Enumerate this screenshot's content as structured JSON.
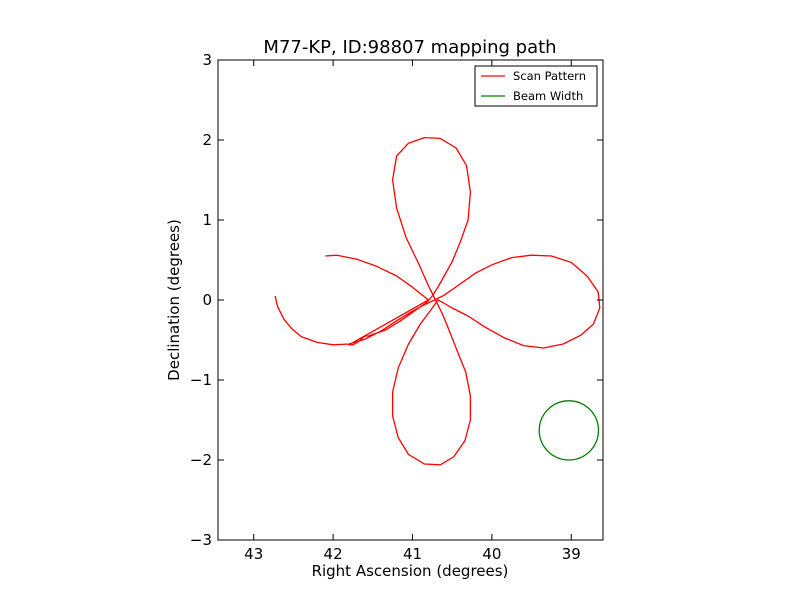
{
  "chart_data": {
    "type": "line",
    "title": "M77-KP, ID:98807 mapping path",
    "xlabel": "Right Ascension (degrees)",
    "ylabel": "Declination (degrees)",
    "xlim": [
      43.45,
      38.6
    ],
    "ylim": [
      -3,
      3
    ],
    "x_ticks": [
      43,
      42,
      41,
      40,
      39
    ],
    "y_ticks": [
      -3,
      -2,
      -1,
      0,
      1,
      2,
      3
    ],
    "x_tick_labels": [
      "43",
      "42",
      "41",
      "40",
      "39"
    ],
    "y_tick_labels": [
      "−3",
      "−2",
      "−1",
      "0",
      "1",
      "2",
      "3"
    ],
    "grid": false,
    "legend_position": "top-right",
    "legend": [
      "Scan Pattern",
      "Beam Width"
    ],
    "series": [
      {
        "name": "Scan Pattern",
        "color": "#ff0000",
        "kind": "line",
        "points": [
          [
            42.73,
            0.05
          ],
          [
            42.7,
            -0.08
          ],
          [
            42.62,
            -0.24
          ],
          [
            42.52,
            -0.36
          ],
          [
            42.4,
            -0.46
          ],
          [
            42.2,
            -0.53
          ],
          [
            42.0,
            -0.56
          ],
          [
            41.8,
            -0.55
          ],
          [
            41.6,
            -0.49
          ],
          [
            41.4,
            -0.39
          ],
          [
            41.2,
            -0.26
          ],
          [
            41.0,
            -0.14
          ],
          [
            40.85,
            -0.06
          ],
          [
            40.72,
            0.0
          ],
          [
            40.6,
            0.06
          ],
          [
            40.4,
            0.2
          ],
          [
            40.2,
            0.34
          ],
          [
            40.0,
            0.44
          ],
          [
            39.75,
            0.53
          ],
          [
            39.5,
            0.56
          ],
          [
            39.25,
            0.55
          ],
          [
            39.0,
            0.47
          ],
          [
            38.8,
            0.3
          ],
          [
            38.66,
            0.1
          ],
          [
            38.64,
            -0.1
          ],
          [
            38.72,
            -0.3
          ],
          [
            38.88,
            -0.44
          ],
          [
            39.1,
            -0.55
          ],
          [
            39.35,
            -0.6
          ],
          [
            39.6,
            -0.57
          ],
          [
            39.85,
            -0.47
          ],
          [
            40.1,
            -0.33
          ],
          [
            40.3,
            -0.2
          ],
          [
            40.5,
            -0.1
          ],
          [
            40.62,
            -0.03
          ],
          [
            40.68,
            0.0
          ],
          [
            40.75,
            -0.1
          ],
          [
            40.9,
            -0.3
          ],
          [
            41.05,
            -0.55
          ],
          [
            41.18,
            -0.85
          ],
          [
            41.25,
            -1.15
          ],
          [
            41.25,
            -1.45
          ],
          [
            41.18,
            -1.72
          ],
          [
            41.05,
            -1.93
          ],
          [
            40.85,
            -2.05
          ],
          [
            40.65,
            -2.06
          ],
          [
            40.48,
            -1.96
          ],
          [
            40.34,
            -1.76
          ],
          [
            40.27,
            -1.5
          ],
          [
            40.27,
            -1.2
          ],
          [
            40.33,
            -0.9
          ],
          [
            40.45,
            -0.6
          ],
          [
            40.55,
            -0.35
          ],
          [
            40.62,
            -0.18
          ],
          [
            40.68,
            -0.06
          ],
          [
            40.72,
            0.02
          ],
          [
            40.8,
            0.18
          ],
          [
            40.92,
            0.45
          ],
          [
            41.08,
            0.78
          ],
          [
            41.2,
            1.15
          ],
          [
            41.25,
            1.5
          ],
          [
            41.2,
            1.8
          ],
          [
            41.05,
            1.96
          ],
          [
            40.85,
            2.03
          ],
          [
            40.65,
            2.02
          ],
          [
            40.45,
            1.9
          ],
          [
            40.32,
            1.68
          ],
          [
            40.27,
            1.35
          ],
          [
            40.3,
            1.0
          ],
          [
            40.4,
            0.72
          ],
          [
            40.5,
            0.48
          ],
          [
            40.6,
            0.3
          ],
          [
            40.68,
            0.16
          ],
          [
            40.75,
            0.05
          ],
          [
            40.82,
            -0.03
          ],
          [
            40.95,
            -0.12
          ],
          [
            41.15,
            -0.26
          ],
          [
            41.35,
            -0.38
          ],
          [
            41.5,
            -0.43
          ],
          [
            41.55,
            -0.45
          ],
          [
            41.6,
            -0.45
          ],
          [
            41.68,
            -0.52
          ],
          [
            41.75,
            -0.56
          ],
          [
            41.8,
            -0.56
          ],
          [
            40.8,
            0.0
          ],
          [
            41.0,
            0.16
          ],
          [
            41.2,
            0.3
          ],
          [
            41.45,
            0.42
          ],
          [
            41.7,
            0.51
          ],
          [
            41.95,
            0.56
          ],
          [
            42.1,
            0.55
          ]
        ]
      },
      {
        "name": "Beam Width",
        "color": "#008000",
        "kind": "circle",
        "center": [
          39.03,
          -1.63
        ],
        "radius_y": 0.37
      }
    ]
  }
}
